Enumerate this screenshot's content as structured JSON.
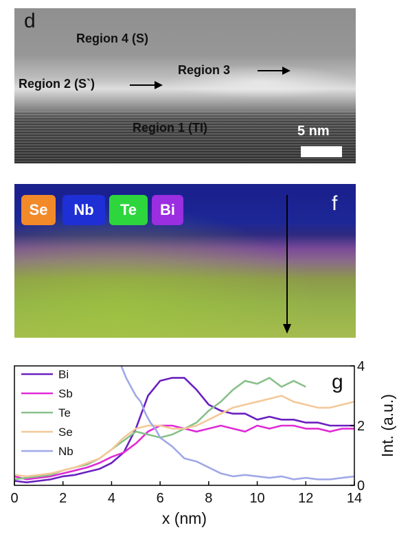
{
  "panel_d": {
    "label": "d",
    "regions": {
      "region4": "Region 4 (S)",
      "region2": "Region 2 (S`)",
      "region3": "Region 3",
      "region1": "Region 1 (TI)"
    },
    "scale_bar_label": "5 nm"
  },
  "panel_f": {
    "label": "f",
    "legend": [
      {
        "symbol": "Se",
        "color": "#f28a2a"
      },
      {
        "symbol": "Nb",
        "color": "#1e2fd6"
      },
      {
        "symbol": "Te",
        "color": "#2ed63e"
      },
      {
        "symbol": "Bi",
        "color": "#9a2ee0"
      }
    ]
  },
  "chart_data": {
    "type": "line",
    "panel_label": "g",
    "xlabel": "x (nm)",
    "ylabel": "Int. (a.u.)",
    "xlim": [
      0,
      14
    ],
    "ylim": [
      0,
      4
    ],
    "xticks": [
      "0",
      "2",
      "4",
      "6",
      "8",
      "10",
      "12",
      "14"
    ],
    "yticks": [
      "0",
      "2",
      "4"
    ],
    "legend_position": "top-left",
    "series": [
      {
        "name": "Bi",
        "color": "#6a1fc0",
        "x": [
          0,
          0.5,
          1,
          1.5,
          2,
          2.5,
          3,
          3.5,
          4,
          4.5,
          5,
          5.5,
          6,
          6.5,
          7,
          7.5,
          8,
          8.5,
          9,
          9.5,
          10,
          10.5,
          11,
          11.5,
          12,
          12.5,
          13,
          13.5,
          14
        ],
        "y": [
          0.15,
          0.1,
          0.15,
          0.2,
          0.3,
          0.35,
          0.45,
          0.55,
          0.75,
          1.1,
          1.9,
          3.0,
          3.5,
          3.6,
          3.6,
          3.2,
          2.7,
          2.5,
          2.4,
          2.4,
          2.2,
          2.3,
          2.2,
          2.2,
          2.1,
          2.1,
          2.0,
          2.0,
          2.0
        ]
      },
      {
        "name": "Sb",
        "color": "#e02ad6",
        "x": [
          0,
          0.5,
          1,
          1.5,
          2,
          2.5,
          3,
          3.5,
          4,
          4.5,
          5,
          5.5,
          6,
          6.5,
          7,
          7.5,
          8,
          8.5,
          9,
          9.5,
          10,
          10.5,
          11,
          11.5,
          12,
          12.5,
          13,
          13.5,
          14
        ],
        "y": [
          0.3,
          0.2,
          0.25,
          0.3,
          0.4,
          0.5,
          0.6,
          0.75,
          0.95,
          1.1,
          1.4,
          1.8,
          2.0,
          2.0,
          1.9,
          1.8,
          1.9,
          2.0,
          1.9,
          1.8,
          2.0,
          1.9,
          2.0,
          2.0,
          1.9,
          1.9,
          1.8,
          1.9,
          1.9
        ]
      },
      {
        "name": "Te",
        "color": "#88c08a",
        "x": [
          0,
          0.5,
          1,
          1.5,
          2,
          2.5,
          3,
          3.5,
          4,
          4.5,
          5,
          5.5,
          6,
          6.5,
          7,
          7.5,
          8,
          8.5,
          9,
          9.5,
          10,
          10.5,
          11,
          11.5,
          12
        ],
        "y": [
          0.2,
          0.25,
          0.3,
          0.35,
          0.5,
          0.6,
          0.7,
          0.9,
          1.2,
          1.5,
          1.8,
          1.7,
          1.6,
          1.7,
          1.9,
          2.1,
          2.5,
          2.8,
          3.2,
          3.5,
          3.4,
          3.6,
          3.3,
          3.5,
          3.3
        ]
      },
      {
        "name": "Se",
        "color": "#f4c898",
        "x": [
          0,
          0.5,
          1,
          1.5,
          2,
          2.5,
          3,
          3.5,
          4,
          4.5,
          5,
          5.5,
          6,
          6.5,
          7,
          7.5,
          8,
          8.5,
          9,
          9.5,
          10,
          10.5,
          11,
          11.5,
          12,
          12.5,
          13,
          13.5,
          14
        ],
        "y": [
          0.35,
          0.3,
          0.35,
          0.4,
          0.5,
          0.6,
          0.75,
          0.9,
          1.2,
          1.6,
          1.9,
          2.0,
          2.0,
          1.9,
          1.9,
          2.0,
          2.2,
          2.4,
          2.6,
          2.7,
          2.8,
          2.9,
          3.0,
          2.8,
          2.7,
          2.6,
          2.6,
          2.7,
          2.8
        ]
      },
      {
        "name": "Nb",
        "color": "#a0a8e8",
        "x": [
          4.4,
          4.6,
          4.8,
          5.0,
          5.2,
          5.4,
          5.6,
          5.8,
          6,
          6.5,
          7,
          7.5,
          8,
          8.5,
          9,
          9.5,
          10,
          10.5,
          11,
          11.5,
          12,
          12.5,
          13,
          13.5,
          14
        ],
        "y": [
          4.0,
          3.6,
          3.3,
          3.0,
          2.8,
          2.4,
          2.1,
          1.9,
          1.6,
          1.3,
          0.9,
          0.8,
          0.6,
          0.4,
          0.3,
          0.35,
          0.3,
          0.25,
          0.3,
          0.2,
          0.25,
          0.2,
          0.2,
          0.25,
          0.3
        ]
      }
    ]
  }
}
